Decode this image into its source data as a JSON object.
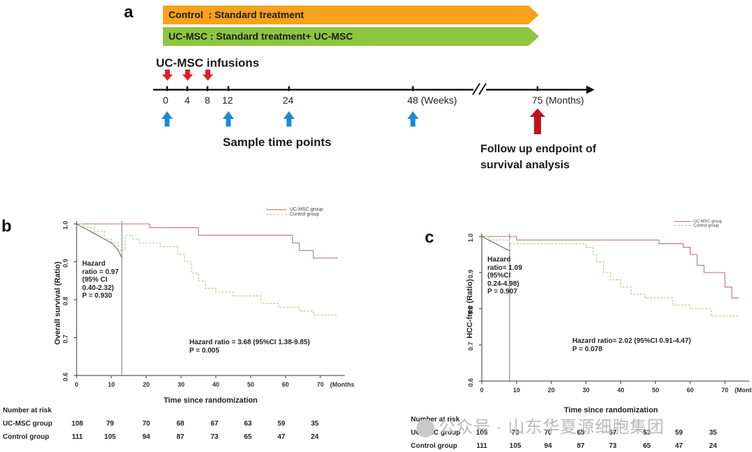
{
  "panel_a": {
    "letter": "a",
    "arms": [
      {
        "label": "Control  : Standard treatment",
        "color": "#f7a21b"
      },
      {
        "label": "UC-MSC : Standard treatment+ UC-MSC",
        "color": "#8cc63f"
      }
    ],
    "infusions_label": "UC-MSC  infusions",
    "ticks": [
      "0",
      "4",
      "8",
      "12",
      "24",
      "48 (Weeks)",
      "75 (Months)"
    ],
    "sample_label": "Sample time points",
    "endpoint_label_1": "Follow up endpoint of",
    "endpoint_label_2": "survival analysis",
    "colors": {
      "infusion_arrow": "#d6232b",
      "sample_arrow": "#1a8bd0",
      "endpoint_arrow": "#c1121b"
    }
  },
  "chart_data": [
    {
      "type": "line",
      "panel": "b",
      "ylabel": "Overall survival (Ratio)",
      "xlabel": "Time since randomization",
      "x_ticks": [
        "0",
        "10",
        "20",
        "30",
        "40",
        "50",
        "60",
        "70"
      ],
      "x_unit_label": "(Months",
      "y_ticks": [
        "0.6",
        "0.7",
        "0.8",
        "0.9",
        "1.0"
      ],
      "xlim": [
        0,
        75
      ],
      "ylim": [
        0.6,
        1.0
      ],
      "series": [
        {
          "name": "UC-MSC group",
          "color": "#b97373",
          "dash": "",
          "points": [
            [
              0,
              1.0
            ],
            [
              21,
              1.0
            ],
            [
              21,
              0.99
            ],
            [
              35,
              0.99
            ],
            [
              35,
              0.97
            ],
            [
              62,
              0.97
            ],
            [
              62,
              0.95
            ],
            [
              64,
              0.95
            ],
            [
              64,
              0.93
            ],
            [
              68,
              0.93
            ],
            [
              68,
              0.91
            ],
            [
              75,
              0.91
            ]
          ]
        },
        {
          "name": "Control group",
          "color": "#a3cf85",
          "dash": "3,2",
          "points": [
            [
              0,
              1.0
            ],
            [
              2,
              1.0
            ],
            [
              2,
              0.99
            ],
            [
              5,
              0.99
            ],
            [
              5,
              0.98
            ],
            [
              8,
              0.98
            ],
            [
              8,
              0.96
            ],
            [
              10,
              0.96
            ],
            [
              10,
              0.95
            ],
            [
              12,
              0.95
            ],
            [
              12,
              0.93
            ],
            [
              14,
              0.93
            ],
            [
              14,
              0.97
            ],
            [
              16,
              0.97
            ],
            [
              16,
              0.96
            ],
            [
              18,
              0.96
            ],
            [
              18,
              0.95
            ],
            [
              24,
              0.95
            ],
            [
              24,
              0.94
            ],
            [
              29,
              0.94
            ],
            [
              29,
              0.92
            ],
            [
              31,
              0.92
            ],
            [
              31,
              0.9
            ],
            [
              33,
              0.9
            ],
            [
              33,
              0.87
            ],
            [
              35,
              0.87
            ],
            [
              35,
              0.85
            ],
            [
              37,
              0.85
            ],
            [
              37,
              0.83
            ],
            [
              40,
              0.83
            ],
            [
              40,
              0.82
            ],
            [
              45,
              0.82
            ],
            [
              45,
              0.81
            ],
            [
              53,
              0.81
            ],
            [
              53,
              0.79
            ],
            [
              58,
              0.79
            ],
            [
              58,
              0.78
            ],
            [
              64,
              0.78
            ],
            [
              64,
              0.77
            ],
            [
              68,
              0.77
            ],
            [
              68,
              0.76
            ],
            [
              75,
              0.76
            ]
          ]
        },
        {
          "name": "",
          "color": "#666666",
          "dash": "",
          "points": [
            [
              0,
              1.0
            ],
            [
              2,
              0.99
            ],
            [
              4,
              0.98
            ],
            [
              6,
              0.97
            ],
            [
              8,
              0.96
            ],
            [
              10,
              0.95
            ],
            [
              12,
              0.93
            ],
            [
              13,
              0.91
            ]
          ]
        }
      ],
      "legend": [
        "UC-MSC group",
        "Control group"
      ],
      "legend_position": "top-right",
      "annotation_left": [
        "Hazard",
        "ratio = 0.97",
        "(95% CI",
        "0.40-2.32)",
        "P = 0.930"
      ],
      "annotation_main": [
        "Hazard ratio = 3.68 (95%CI 1.38-9.85)",
        "P = 0.005"
      ],
      "risk_table": {
        "title": "Number at risk",
        "rows": [
          {
            "label": "UC-MSC  group",
            "values": [
              "108",
              "79",
              "70",
              "68",
              "67",
              "63",
              "59",
              "35"
            ]
          },
          {
            "label": "Control group",
            "values": [
              "111",
              "105",
              "94",
              "87",
              "73",
              "65",
              "47",
              "24"
            ]
          }
        ]
      }
    },
    {
      "type": "line",
      "panel": "c",
      "ylabel": "HCC-free (Ratio)",
      "xlabel": "Time since randomization",
      "x_ticks": [
        "0",
        "10",
        "20",
        "30",
        "40",
        "50",
        "60",
        "70"
      ],
      "x_unit_label": "(Months)",
      "y_ticks": [
        "0.6",
        "0.7",
        "0.8",
        "0.9",
        "1.0"
      ],
      "xlim": [
        0,
        75
      ],
      "ylim": [
        0.6,
        1.0
      ],
      "series": [
        {
          "name": "UC-MSC group",
          "color": "#b97373",
          "dash": "",
          "points": [
            [
              0,
              1.0
            ],
            [
              10,
              1.0
            ],
            [
              10,
              0.99
            ],
            [
              51,
              0.99
            ],
            [
              51,
              0.98
            ],
            [
              58,
              0.98
            ],
            [
              58,
              0.97
            ],
            [
              60,
              0.97
            ],
            [
              60,
              0.95
            ],
            [
              62,
              0.95
            ],
            [
              62,
              0.92
            ],
            [
              64,
              0.92
            ],
            [
              64,
              0.9
            ],
            [
              70,
              0.9
            ],
            [
              70,
              0.86
            ],
            [
              72,
              0.86
            ],
            [
              72,
              0.83
            ],
            [
              74,
              0.83
            ]
          ]
        },
        {
          "name": "Control group",
          "color": "#a3cf85",
          "dash": "3,2",
          "points": [
            [
              0,
              1.0
            ],
            [
              2,
              1.0
            ],
            [
              2,
              0.99
            ],
            [
              8,
              0.99
            ],
            [
              8,
              0.98
            ],
            [
              30,
              0.98
            ],
            [
              30,
              0.97
            ],
            [
              32,
              0.97
            ],
            [
              32,
              0.95
            ],
            [
              33,
              0.95
            ],
            [
              33,
              0.93
            ],
            [
              35,
              0.93
            ],
            [
              35,
              0.9
            ],
            [
              37,
              0.9
            ],
            [
              37,
              0.88
            ],
            [
              40,
              0.88
            ],
            [
              40,
              0.86
            ],
            [
              43,
              0.86
            ],
            [
              43,
              0.84
            ],
            [
              47,
              0.84
            ],
            [
              47,
              0.83
            ],
            [
              55,
              0.83
            ],
            [
              55,
              0.81
            ],
            [
              60,
              0.81
            ],
            [
              60,
              0.8
            ],
            [
              66,
              0.8
            ],
            [
              66,
              0.78
            ],
            [
              74,
              0.78
            ]
          ]
        },
        {
          "name": "",
          "color": "#666666",
          "dash": "",
          "points": [
            [
              0,
              1.0
            ],
            [
              2,
              0.99
            ],
            [
              4,
              0.98
            ],
            [
              6,
              0.97
            ],
            [
              8,
              0.96
            ]
          ]
        }
      ],
      "legend": [
        "UC-MSC group",
        "Control group"
      ],
      "legend_position": "top-right",
      "annotation_left": [
        "Hazard",
        "ratio= 1.09",
        "(95%CI",
        "0.24-4.98)",
        "P = 0.907"
      ],
      "annotation_main": [
        "Hazard ratio= 2.02 (95%CI 0.91-4.47)",
        "P = 0.078"
      ],
      "risk_table": {
        "title": "Number at risk",
        "rows": [
          {
            "label": "UC-MSC group",
            "values": [
              "108",
              "79",
              "70",
              "68",
              "67",
              "63",
              "59",
              "35"
            ]
          },
          {
            "label": "Control group",
            "values": [
              "111",
              "105",
              "94",
              "87",
              "73",
              "65",
              "47",
              "24"
            ]
          }
        ]
      }
    }
  ],
  "watermark": "公众号 · 山东华夏源细胞集团"
}
